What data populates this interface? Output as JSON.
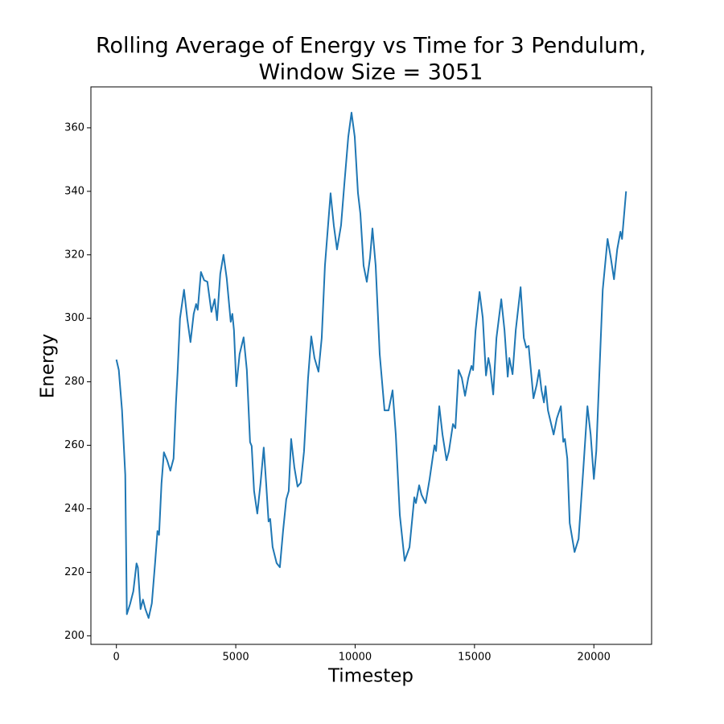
{
  "chart_data": {
    "type": "line",
    "title": [
      "Rolling Average of Energy vs Time for 3 Pendulum,",
      "Window Size = 3051"
    ],
    "x_label": "Timestep",
    "y_label": "Energy",
    "xlim": [
      -1068,
      22418
    ],
    "ylim": [
      197.3,
      372.9
    ],
    "xticks": [
      0,
      5000,
      10000,
      15000,
      20000
    ],
    "yticks": [
      200,
      220,
      240,
      260,
      280,
      300,
      320,
      340,
      360
    ],
    "grid": false,
    "series": [
      {
        "name": "Energy",
        "color": "#1f77b4",
        "x": [
          0,
          101,
          236,
          371,
          438,
          573,
          708,
          843,
          900,
          1012,
          1113,
          1215,
          1349,
          1484,
          1619,
          1720,
          1787,
          1889,
          1990,
          2125,
          2260,
          2394,
          2496,
          2563,
          2664,
          2833,
          2968,
          3103,
          3238,
          3339,
          3406,
          3541,
          3676,
          3811,
          3980,
          4115,
          4216,
          4351,
          4486,
          4621,
          4789,
          4857,
          4924,
          5025,
          5160,
          5329,
          5464,
          5599,
          5666,
          5767,
          5902,
          6037,
          6172,
          6273,
          6374,
          6442,
          6543,
          6712,
          6847,
          6981,
          7116,
          7218,
          7319,
          7454,
          7588,
          7723,
          7858,
          8027,
          8162,
          8297,
          8465,
          8600,
          8735,
          8971,
          9106,
          9241,
          9410,
          9545,
          9713,
          9848,
          9983,
          10118,
          10219,
          10354,
          10489,
          10624,
          10725,
          10860,
          11029,
          11231,
          11400,
          11568,
          11703,
          11872,
          12074,
          12277,
          12479,
          12546,
          12681,
          12782,
          12951,
          13120,
          13322,
          13389,
          13524,
          13659,
          13828,
          13929,
          14098,
          14199,
          14334,
          14469,
          14604,
          14739,
          14873,
          14941,
          15042,
          15211,
          15346,
          15481,
          15582,
          15649,
          15784,
          15919,
          16121,
          16256,
          16391,
          16459,
          16594,
          16728,
          16931,
          17066,
          17167,
          17268,
          17470,
          17605,
          17707,
          17808,
          17909,
          17976,
          18077,
          18314,
          18449,
          18617,
          18718,
          18786,
          18887,
          18988,
          19191,
          19359,
          19562,
          19730,
          19865,
          20000,
          20101,
          20236,
          20371,
          20573,
          20708,
          20843,
          20978,
          21113,
          21180,
          21349
        ],
        "values": [
          287,
          283.7,
          271,
          250.7,
          206.8,
          210,
          214,
          222.8,
          221.5,
          208.4,
          211.4,
          208.4,
          205.6,
          210.2,
          222.8,
          233,
          231.8,
          248,
          257.8,
          255.3,
          252,
          255.8,
          273.5,
          283,
          300,
          309,
          299.9,
          292.5,
          301.4,
          304.5,
          302.7,
          314.6,
          312,
          311.5,
          302,
          306,
          299.4,
          314,
          320,
          312.6,
          298.9,
          301.4,
          296.3,
          278.6,
          288.7,
          294,
          283.7,
          261,
          259.8,
          245.6,
          238.5,
          248,
          259.3,
          248,
          236,
          236.8,
          228,
          222.9,
          221.6,
          233,
          243,
          245.6,
          262,
          253.1,
          247,
          248.2,
          258,
          281,
          294.3,
          287.5,
          283.2,
          293.8,
          316.6,
          339.4,
          329.3,
          321.7,
          329.3,
          342,
          357.2,
          364.8,
          357.2,
          339.5,
          333,
          316.6,
          311.5,
          319.1,
          328.3,
          316.6,
          288.7,
          271,
          271,
          277.3,
          263.4,
          238,
          223.6,
          227.9,
          243.6,
          241.8,
          247.4,
          244.4,
          241.8,
          249.4,
          260,
          258.2,
          272.3,
          263.4,
          255.3,
          258.2,
          266.7,
          265.4,
          283.7,
          281.2,
          275.6,
          281.2,
          285,
          283.7,
          296,
          308.3,
          300.2,
          282,
          287.5,
          285,
          276,
          293.8,
          306,
          296.3,
          281.6,
          287.5,
          282.4,
          296.3,
          309.8,
          293.8,
          290.8,
          291.3,
          274.8,
          279.1,
          283.7,
          277.3,
          273.5,
          278.6,
          271,
          263.4,
          268.5,
          272.3,
          261.1,
          262,
          255.8,
          235.5,
          226.4,
          230.5,
          253,
          272.3,
          263.4,
          249.4,
          258.2,
          283.7,
          309,
          325,
          319.1,
          312.3,
          321.7,
          327.3,
          325,
          340
        ]
      }
    ]
  }
}
